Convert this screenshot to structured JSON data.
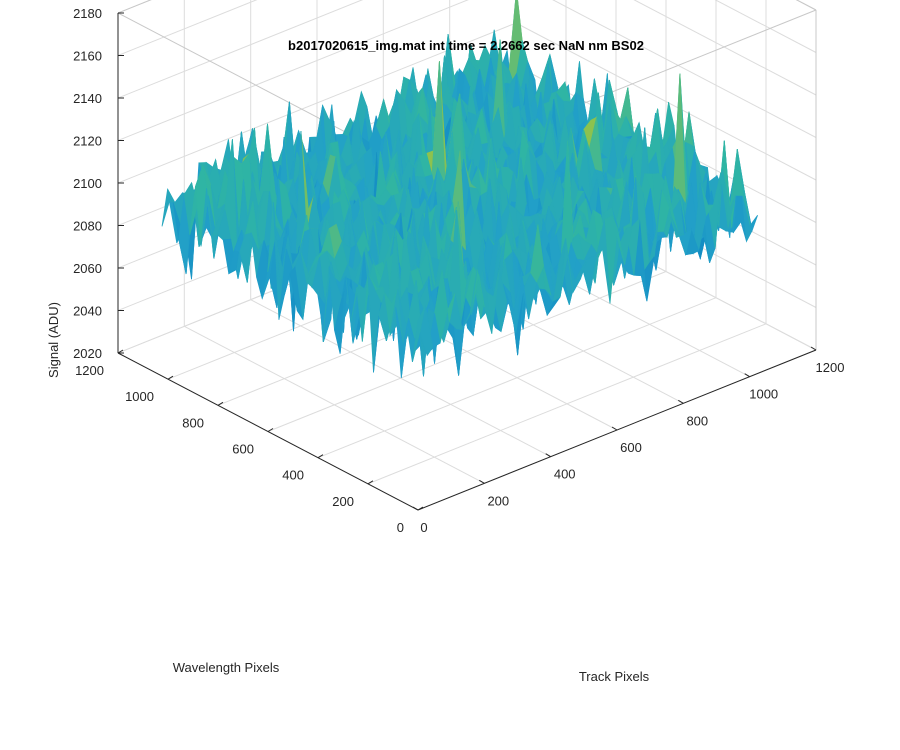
{
  "chart_data": {
    "type": "surface",
    "title": "b2017020615_img.mat int time = 2.2662 sec  NaN nm BS02",
    "xlabel": "Track Pixels",
    "ylabel": "Wavelength Pixels",
    "zlabel": "Signal (ADU)",
    "xlim": [
      0,
      1200
    ],
    "ylim": [
      0,
      1200
    ],
    "zlim": [
      2020,
      2180
    ],
    "x_data_extent": [
      0,
      1024
    ],
    "y_data_extent": [
      0,
      1024
    ],
    "xticks": [
      "0",
      "200",
      "400",
      "600",
      "800",
      "1000",
      "1200"
    ],
    "yticks": [
      "0",
      "200",
      "400",
      "600",
      "800",
      "1000",
      "1200"
    ],
    "zticks": [
      "2020",
      "2040",
      "2060",
      "2080",
      "2100",
      "2120",
      "2140",
      "2160",
      "2180"
    ],
    "grid": true,
    "box": true,
    "colormap": "parula",
    "surface_mean": 2100,
    "surface_noise_range": [
      2040,
      2160
    ],
    "colors": {
      "low": "#0072BD",
      "mid": "#2FB5A3",
      "high": "#E3C727",
      "axis": "#262626",
      "grid": "#dcdcdc"
    }
  }
}
